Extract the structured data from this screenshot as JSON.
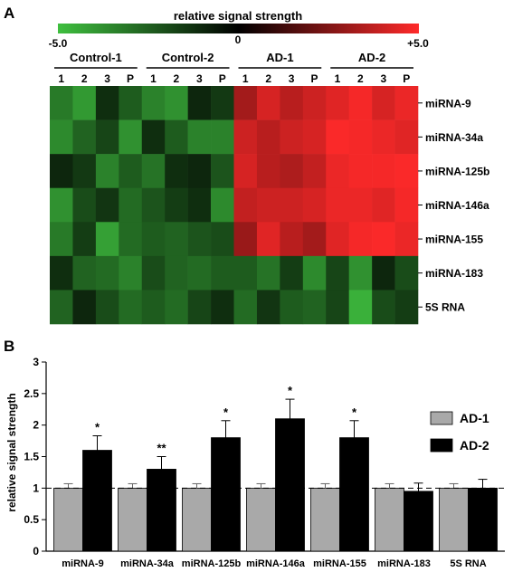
{
  "panel_a": {
    "letter": "A",
    "colorbar": {
      "title": "relative signal strength",
      "min_label": "-5.0",
      "mid_label": "0",
      "max_label": "+5.0",
      "min_color": "#3fbf3f",
      "mid_color": "#000000",
      "max_color": "#ff2a2a"
    }
  },
  "panel_b": {
    "letter": "B"
  },
  "chart_data": [
    {
      "type": "heatmap",
      "title": "",
      "value_range": [
        -5.0,
        5.0
      ],
      "groups": [
        {
          "name": "Control-1",
          "columns": [
            "1",
            "2",
            "3",
            "P"
          ]
        },
        {
          "name": "Control-2",
          "columns": [
            "1",
            "2",
            "3",
            "P"
          ]
        },
        {
          "name": "AD-1",
          "columns": [
            "1",
            "2",
            "3",
            "P"
          ]
        },
        {
          "name": "AD-2",
          "columns": [
            "1",
            "2",
            "3",
            "P"
          ]
        }
      ],
      "rows": [
        "miRNA-9",
        "miRNA-34a",
        "miRNA-125b",
        "miRNA-146a",
        "miRNA-155",
        "miRNA-183",
        "5S RNA"
      ],
      "values": [
        [
          -3.2,
          -4.0,
          -1.2,
          -2.4,
          -3.4,
          -3.8,
          -1.0,
          -1.5,
          3.2,
          4.2,
          3.6,
          4.0,
          4.4,
          4.8,
          4.2,
          4.6
        ],
        [
          -3.6,
          -2.6,
          -1.8,
          -3.8,
          -1.2,
          -2.4,
          -3.4,
          -3.4,
          4.0,
          3.6,
          4.0,
          4.2,
          4.9,
          4.8,
          4.6,
          4.4
        ],
        [
          -1.0,
          -1.5,
          -3.4,
          -2.4,
          -3.0,
          -1.2,
          -1.0,
          -2.2,
          4.2,
          3.6,
          3.4,
          3.8,
          4.6,
          4.8,
          4.8,
          4.9
        ],
        [
          -3.8,
          -2.0,
          -1.4,
          -2.8,
          -2.2,
          -1.6,
          -1.2,
          -3.6,
          3.8,
          4.0,
          4.0,
          4.2,
          4.6,
          4.6,
          4.4,
          4.8
        ],
        [
          -3.2,
          -1.6,
          -4.2,
          -2.8,
          -2.4,
          -2.6,
          -2.2,
          -2.0,
          3.0,
          4.4,
          3.6,
          3.2,
          4.4,
          4.8,
          4.9,
          4.6
        ],
        [
          -1.2,
          -2.6,
          -2.8,
          -3.4,
          -2.0,
          -2.6,
          -2.8,
          -2.4,
          -2.4,
          -3.0,
          -1.6,
          -3.6,
          -1.8,
          -3.8,
          -1.0,
          -2.0
        ],
        [
          -2.6,
          -1.0,
          -2.0,
          -2.8,
          -2.4,
          -2.8,
          -1.8,
          -1.2,
          -2.8,
          -1.4,
          -2.4,
          -2.6,
          -1.8,
          -4.6,
          -2.0,
          -1.6
        ]
      ]
    },
    {
      "type": "bar",
      "title": "",
      "xlabel": "",
      "ylabel": "relative signal strength",
      "ylim": [
        0,
        3
      ],
      "yticks": [
        "0",
        "0.5",
        "1",
        "1.5",
        "2",
        "2.5",
        "3"
      ],
      "categories": [
        "miRNA-9",
        "miRNA-34a",
        "miRNA-125b",
        "miRNA-146a",
        "miRNA-155",
        "miRNA-183",
        "5S RNA"
      ],
      "reference_line": 1.0,
      "legend_position": "right",
      "series": [
        {
          "name": "AD-1",
          "color": "#a9a9a9",
          "values": [
            1.0,
            1.0,
            1.0,
            1.0,
            1.0,
            1.0,
            1.0
          ],
          "errors": [
            0.07,
            0.07,
            0.07,
            0.07,
            0.07,
            0.07,
            0.07
          ]
        },
        {
          "name": "AD-2",
          "color": "#000000",
          "values": [
            1.6,
            1.3,
            1.8,
            2.1,
            1.8,
            0.95,
            1.0
          ],
          "errors": [
            0.23,
            0.2,
            0.27,
            0.31,
            0.27,
            0.13,
            0.14
          ]
        }
      ],
      "significance": [
        "*",
        "**",
        "*",
        "*",
        "*",
        "",
        ""
      ]
    }
  ]
}
